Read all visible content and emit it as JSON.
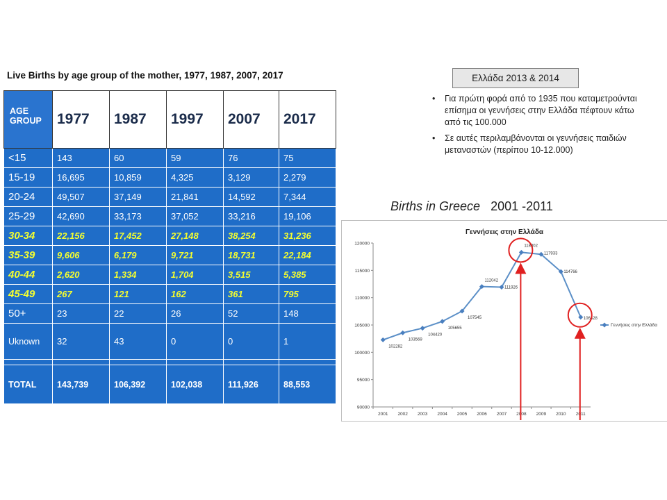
{
  "table": {
    "title": "Live Births by age group of the mother, 1977, 1987, 2007, 2017",
    "header_age": [
      "AGE",
      "GROUP"
    ],
    "years": [
      "1977",
      "1987",
      "1997",
      "2007",
      "2017"
    ],
    "rows": [
      {
        "age": "<15",
        "values": [
          "143",
          "60",
          "59",
          "76",
          "75"
        ]
      },
      {
        "age": "15-19",
        "values": [
          "16,695",
          "10,859",
          "4,325",
          "3,129",
          "2,279"
        ]
      },
      {
        "age": "20-24",
        "values": [
          "49,507",
          "37,149",
          "21,841",
          "14,592",
          "7,344"
        ]
      },
      {
        "age": "25-29",
        "values": [
          "42,690",
          "33,173",
          "37,052",
          "33,216",
          "19,106"
        ]
      },
      {
        "age": "30-34",
        "values": [
          "22,156",
          "17,452",
          "27,148",
          "38,254",
          "31,236"
        ]
      },
      {
        "age": "35-39",
        "values": [
          "9,606",
          "6,179",
          "9,721",
          "18,731",
          "22,184"
        ]
      },
      {
        "age": "40-44",
        "values": [
          "2,620",
          "1,334",
          "1,704",
          "3,515",
          "5,385"
        ]
      },
      {
        "age": "45-49",
        "values": [
          "267",
          "121",
          "162",
          "361",
          "795"
        ]
      },
      {
        "age": "50+",
        "values": [
          "23",
          "22",
          "26",
          "52",
          "148"
        ]
      },
      {
        "age": "Uknown",
        "values": [
          "32",
          "43",
          "0",
          "0",
          "1"
        ]
      }
    ],
    "total": {
      "age": "TOTAL",
      "values": [
        "143,739",
        "106,392",
        "102,038",
        "111,926",
        "88,553"
      ]
    },
    "colors": {
      "cell_bg": "#1f6dc8",
      "highlight_text": "#f6ff2e"
    }
  },
  "greece_box": "Ελλάδα 2013 & 2014",
  "notes": [
    "Για πρώτη φορά από το 1935 που καταμετρούνται επίσημα οι γεννήσεις στην Ελλάδα πέφτουν κάτω από τις 100.000",
    "Σε αυτές περιλαμβάνονται οι γεννήσεις παιδιών μεταναστών (περίπου 10-12.000)"
  ],
  "chart_heading": {
    "text": "Births in Greece",
    "years": "2001 -2011"
  },
  "chart_data": {
    "type": "line",
    "title": "Γεννήσεις στην Ελλάδα",
    "x": [
      "2001",
      "2002",
      "2003",
      "2004",
      "2005",
      "2006",
      "2007",
      "2008",
      "2009",
      "2010",
      "2011"
    ],
    "series": [
      {
        "name": "Γεννήσεις στην Ελλάδα",
        "values": [
          102282,
          103569,
          104420,
          105655,
          107545,
          112042,
          111926,
          118302,
          117933,
          114766,
          106428
        ]
      }
    ],
    "ylim": [
      90000,
      120000
    ],
    "yticks": [
      90000,
      95000,
      100000,
      105000,
      110000,
      115000,
      120000
    ],
    "ytick_labels": [
      "90000",
      "95000",
      "100000",
      "105000",
      "110000",
      "115000",
      "120000"
    ],
    "grid": false,
    "legend": "right",
    "highlighted_years": [
      "2008",
      "2011"
    ],
    "line_color": "#5b8fc7",
    "marker_color": "#4a7fbf",
    "annotation_color": "#e02020"
  }
}
